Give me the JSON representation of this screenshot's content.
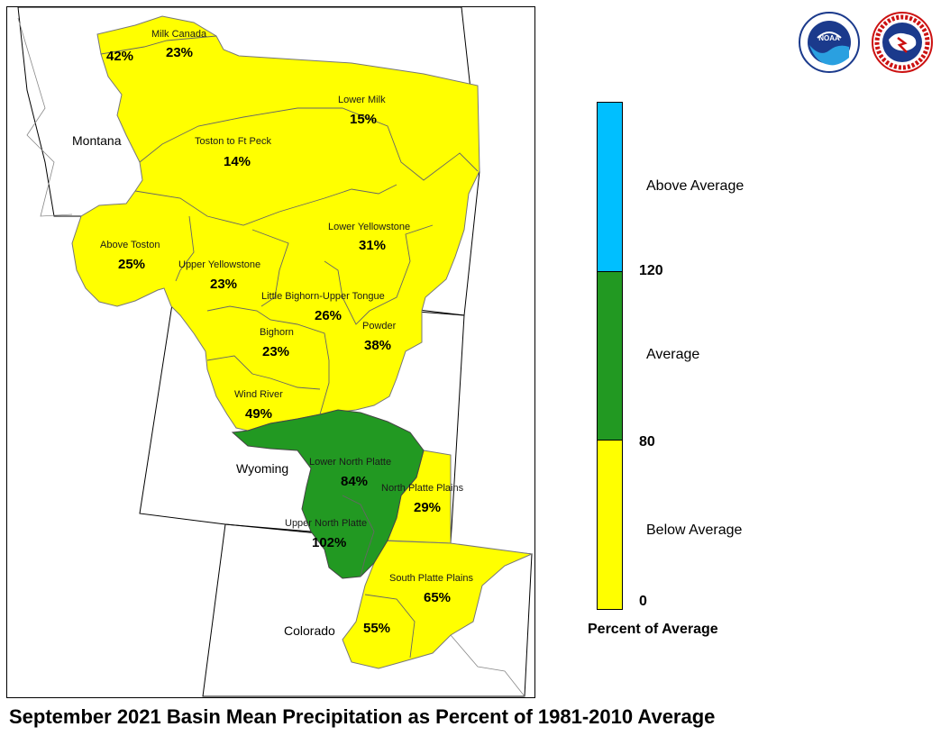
{
  "title": "September 2021 Basin Mean Precipitation as Percent of 1981-2010 Average",
  "colors": {
    "below_average": "#ffff00",
    "average": "#229922",
    "above_average": "#00bfff"
  },
  "states": [
    "Montana",
    "Wyoming",
    "Colorado"
  ],
  "basins": [
    {
      "name": "Milk Canada",
      "percent": "23%",
      "category": "below_average"
    },
    {
      "name": "",
      "percent": "42%",
      "category": "below_average"
    },
    {
      "name": "Lower Milk",
      "percent": "15%",
      "category": "below_average"
    },
    {
      "name": "Toston to Ft Peck",
      "percent": "14%",
      "category": "below_average"
    },
    {
      "name": "Above Toston",
      "percent": "25%",
      "category": "below_average"
    },
    {
      "name": "Lower Yellowstone",
      "percent": "31%",
      "category": "below_average"
    },
    {
      "name": "Upper Yellowstone",
      "percent": "23%",
      "category": "below_average"
    },
    {
      "name": "Little Bighorn-Upper Tongue",
      "percent": "26%",
      "category": "below_average"
    },
    {
      "name": "Bighorn",
      "percent": "23%",
      "category": "below_average"
    },
    {
      "name": "Powder",
      "percent": "38%",
      "category": "below_average"
    },
    {
      "name": "Wind River",
      "percent": "49%",
      "category": "below_average"
    },
    {
      "name": "Lower North Platte",
      "percent": "84%",
      "category": "average"
    },
    {
      "name": "North Platte Plains",
      "percent": "29%",
      "category": "below_average"
    },
    {
      "name": "Upper North Platte",
      "percent": "102%",
      "category": "average"
    },
    {
      "name": "South Platte Plains",
      "percent": "65%",
      "category": "below_average"
    },
    {
      "name": "",
      "percent": "55%",
      "category": "below_average"
    }
  ],
  "legend": {
    "title": "Percent of Average",
    "categories": [
      "Above Average",
      "Average",
      "Below Average"
    ],
    "ticks": [
      "120",
      "80",
      "0"
    ]
  },
  "logos": [
    {
      "name": "NOAA",
      "icon": "noaa-logo"
    },
    {
      "name": "NATIONAL WEATHER SERVICE",
      "icon": "nws-logo"
    }
  ]
}
